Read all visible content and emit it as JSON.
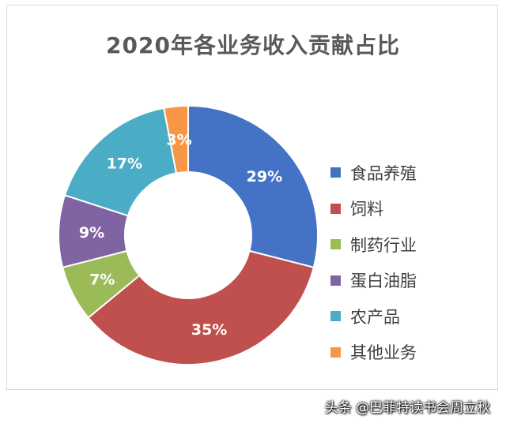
{
  "chart_data": {
    "type": "pie",
    "donut": true,
    "title": "2020年各业务收入贡献占比",
    "categories": [
      "食品养殖",
      "饲料",
      "制药行业",
      "蛋白油脂",
      "农产品",
      "其他业务"
    ],
    "values": [
      29,
      35,
      7,
      9,
      17,
      3
    ],
    "data_labels": [
      "29%",
      "35%",
      "7%",
      "9%",
      "17%",
      "3%"
    ],
    "colors": [
      "#4472C4",
      "#C0504D",
      "#9BBB59",
      "#8064A2",
      "#4BACC6",
      "#F79646"
    ],
    "legend_position": "right"
  },
  "watermark": "头条 @巴菲特读书会周立秋"
}
